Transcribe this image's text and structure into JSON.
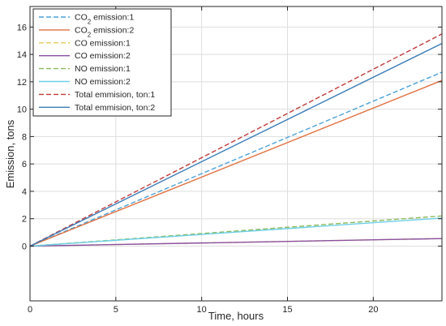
{
  "chart_data": {
    "type": "line",
    "xlabel": "Time, hours",
    "ylabel": "Emission, tons",
    "xlim": [
      0,
      24
    ],
    "ylim": [
      -4,
      17.5
    ],
    "xticks": [
      0,
      5,
      10,
      15,
      20
    ],
    "yticks": [
      0,
      2,
      4,
      6,
      8,
      10,
      12,
      14,
      16
    ],
    "grid": true,
    "legend_position": "top-left",
    "series": [
      {
        "name": "CO2 emission:1",
        "legend": [
          "CO",
          "2",
          " emission:1"
        ],
        "color": "#4aa0d8",
        "dash": true,
        "x": [
          0,
          24
        ],
        "y": [
          0,
          12.7
        ]
      },
      {
        "name": "CO2 emission:2",
        "legend": [
          "CO",
          "2",
          " emission:2"
        ],
        "color": "#e07040",
        "dash": false,
        "x": [
          0,
          24
        ],
        "y": [
          0,
          12.1
        ]
      },
      {
        "name": "CO emission:1",
        "legend": [
          "CO emission:1"
        ],
        "color": "#e8c85a",
        "dash": true,
        "x": [
          0,
          24
        ],
        "y": [
          0,
          0.55
        ]
      },
      {
        "name": "CO emission:2",
        "legend": [
          "CO emission:2"
        ],
        "color": "#8a4fa0",
        "dash": false,
        "x": [
          0,
          24
        ],
        "y": [
          0,
          0.55
        ]
      },
      {
        "name": "NO emission:1",
        "legend": [
          "NO emission:1"
        ],
        "color": "#8aba5a",
        "dash": true,
        "x": [
          0,
          24
        ],
        "y": [
          0,
          2.2
        ]
      },
      {
        "name": "NO emission:2",
        "legend": [
          "NO emission:2"
        ],
        "color": "#6dd0e8",
        "dash": false,
        "x": [
          0,
          24
        ],
        "y": [
          0,
          2.05
        ]
      },
      {
        "name": "Total emmision, ton:1",
        "legend": [
          "Total emmision, ton:1"
        ],
        "color": "#c03a3a",
        "dash": true,
        "x": [
          0,
          24
        ],
        "y": [
          0,
          15.5
        ]
      },
      {
        "name": "Total emmision, ton:2",
        "legend": [
          "Total emmision, ton:2"
        ],
        "color": "#3a7cb8",
        "dash": false,
        "x": [
          0,
          24
        ],
        "y": [
          0,
          14.8
        ]
      }
    ]
  }
}
